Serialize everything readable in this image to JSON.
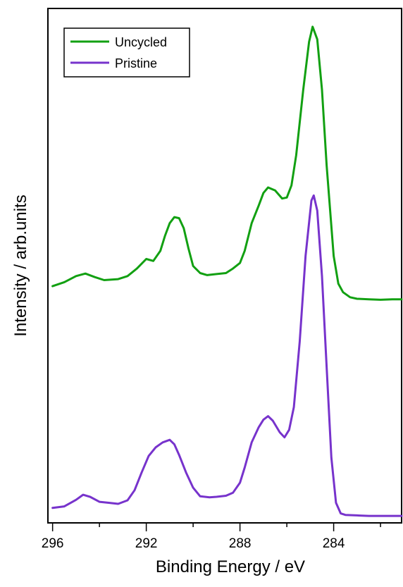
{
  "chart_data": {
    "type": "line",
    "xlabel": "Binding Energy / eV",
    "ylabel": "Intensity / arb.units",
    "xlim": [
      296.2,
      281.1
    ],
    "x_reversed": true,
    "ylim": [
      0,
      100
    ],
    "y_tick_labels": false,
    "grid": false,
    "legend_position": "top-left",
    "x_major_ticks": [
      296,
      292,
      288,
      284
    ],
    "x_minor_ticks": [
      294,
      290,
      286,
      282
    ],
    "series": [
      {
        "name": "Uncycled",
        "color": "#12a012",
        "points": [
          [
            296.0,
            46.0
          ],
          [
            295.5,
            46.8
          ],
          [
            295.0,
            48.0
          ],
          [
            294.6,
            48.5
          ],
          [
            294.2,
            47.8
          ],
          [
            293.8,
            47.2
          ],
          [
            293.2,
            47.4
          ],
          [
            292.8,
            48.0
          ],
          [
            292.4,
            49.5
          ],
          [
            292.0,
            51.4
          ],
          [
            291.7,
            51.0
          ],
          [
            291.4,
            53.0
          ],
          [
            291.2,
            56.0
          ],
          [
            291.0,
            58.5
          ],
          [
            290.8,
            59.7
          ],
          [
            290.6,
            59.5
          ],
          [
            290.4,
            57.5
          ],
          [
            290.2,
            53.5
          ],
          [
            290.0,
            50.0
          ],
          [
            289.7,
            48.6
          ],
          [
            289.4,
            48.2
          ],
          [
            289.0,
            48.4
          ],
          [
            288.6,
            48.6
          ],
          [
            288.3,
            49.5
          ],
          [
            288.0,
            50.6
          ],
          [
            287.8,
            53.0
          ],
          [
            287.5,
            58.5
          ],
          [
            287.2,
            62.0
          ],
          [
            287.0,
            64.5
          ],
          [
            286.8,
            65.6
          ],
          [
            286.5,
            65.0
          ],
          [
            286.2,
            63.4
          ],
          [
            286.0,
            63.6
          ],
          [
            285.8,
            66.0
          ],
          [
            285.6,
            72.0
          ],
          [
            285.3,
            85.0
          ],
          [
            285.05,
            94.5
          ],
          [
            284.9,
            97.5
          ],
          [
            284.7,
            95.0
          ],
          [
            284.5,
            85.0
          ],
          [
            284.3,
            70.0
          ],
          [
            284.0,
            52.0
          ],
          [
            283.8,
            46.5
          ],
          [
            283.6,
            44.8
          ],
          [
            283.3,
            43.8
          ],
          [
            283.0,
            43.5
          ],
          [
            282.5,
            43.4
          ],
          [
            282.0,
            43.3
          ],
          [
            281.5,
            43.4
          ],
          [
            281.1,
            43.4
          ]
        ]
      },
      {
        "name": "Pristine",
        "color": "#7733cc",
        "points": [
          [
            296.0,
            2.0
          ],
          [
            295.5,
            2.3
          ],
          [
            295.0,
            3.6
          ],
          [
            294.7,
            4.6
          ],
          [
            294.4,
            4.2
          ],
          [
            294.0,
            3.2
          ],
          [
            293.6,
            3.0
          ],
          [
            293.2,
            2.8
          ],
          [
            292.8,
            3.5
          ],
          [
            292.5,
            5.5
          ],
          [
            292.2,
            9.0
          ],
          [
            291.9,
            12.3
          ],
          [
            291.6,
            14.0
          ],
          [
            291.3,
            15.0
          ],
          [
            291.0,
            15.5
          ],
          [
            290.8,
            14.6
          ],
          [
            290.6,
            12.5
          ],
          [
            290.3,
            9.0
          ],
          [
            290.0,
            6.0
          ],
          [
            289.7,
            4.3
          ],
          [
            289.3,
            4.1
          ],
          [
            289.0,
            4.2
          ],
          [
            288.6,
            4.4
          ],
          [
            288.3,
            5.0
          ],
          [
            288.0,
            7.0
          ],
          [
            287.8,
            10.0
          ],
          [
            287.5,
            15.0
          ],
          [
            287.2,
            18.0
          ],
          [
            287.0,
            19.5
          ],
          [
            286.8,
            20.2
          ],
          [
            286.6,
            19.3
          ],
          [
            286.3,
            17.0
          ],
          [
            286.1,
            16.0
          ],
          [
            285.9,
            17.5
          ],
          [
            285.7,
            22.0
          ],
          [
            285.45,
            35.0
          ],
          [
            285.2,
            52.0
          ],
          [
            284.95,
            63.0
          ],
          [
            284.85,
            64.0
          ],
          [
            284.7,
            61.0
          ],
          [
            284.5,
            48.0
          ],
          [
            284.3,
            30.0
          ],
          [
            284.1,
            12.0
          ],
          [
            283.9,
            3.0
          ],
          [
            283.7,
            0.9
          ],
          [
            283.5,
            0.6
          ],
          [
            283.0,
            0.5
          ],
          [
            282.5,
            0.4
          ],
          [
            282.0,
            0.4
          ],
          [
            281.5,
            0.4
          ],
          [
            281.1,
            0.4
          ]
        ]
      }
    ]
  }
}
